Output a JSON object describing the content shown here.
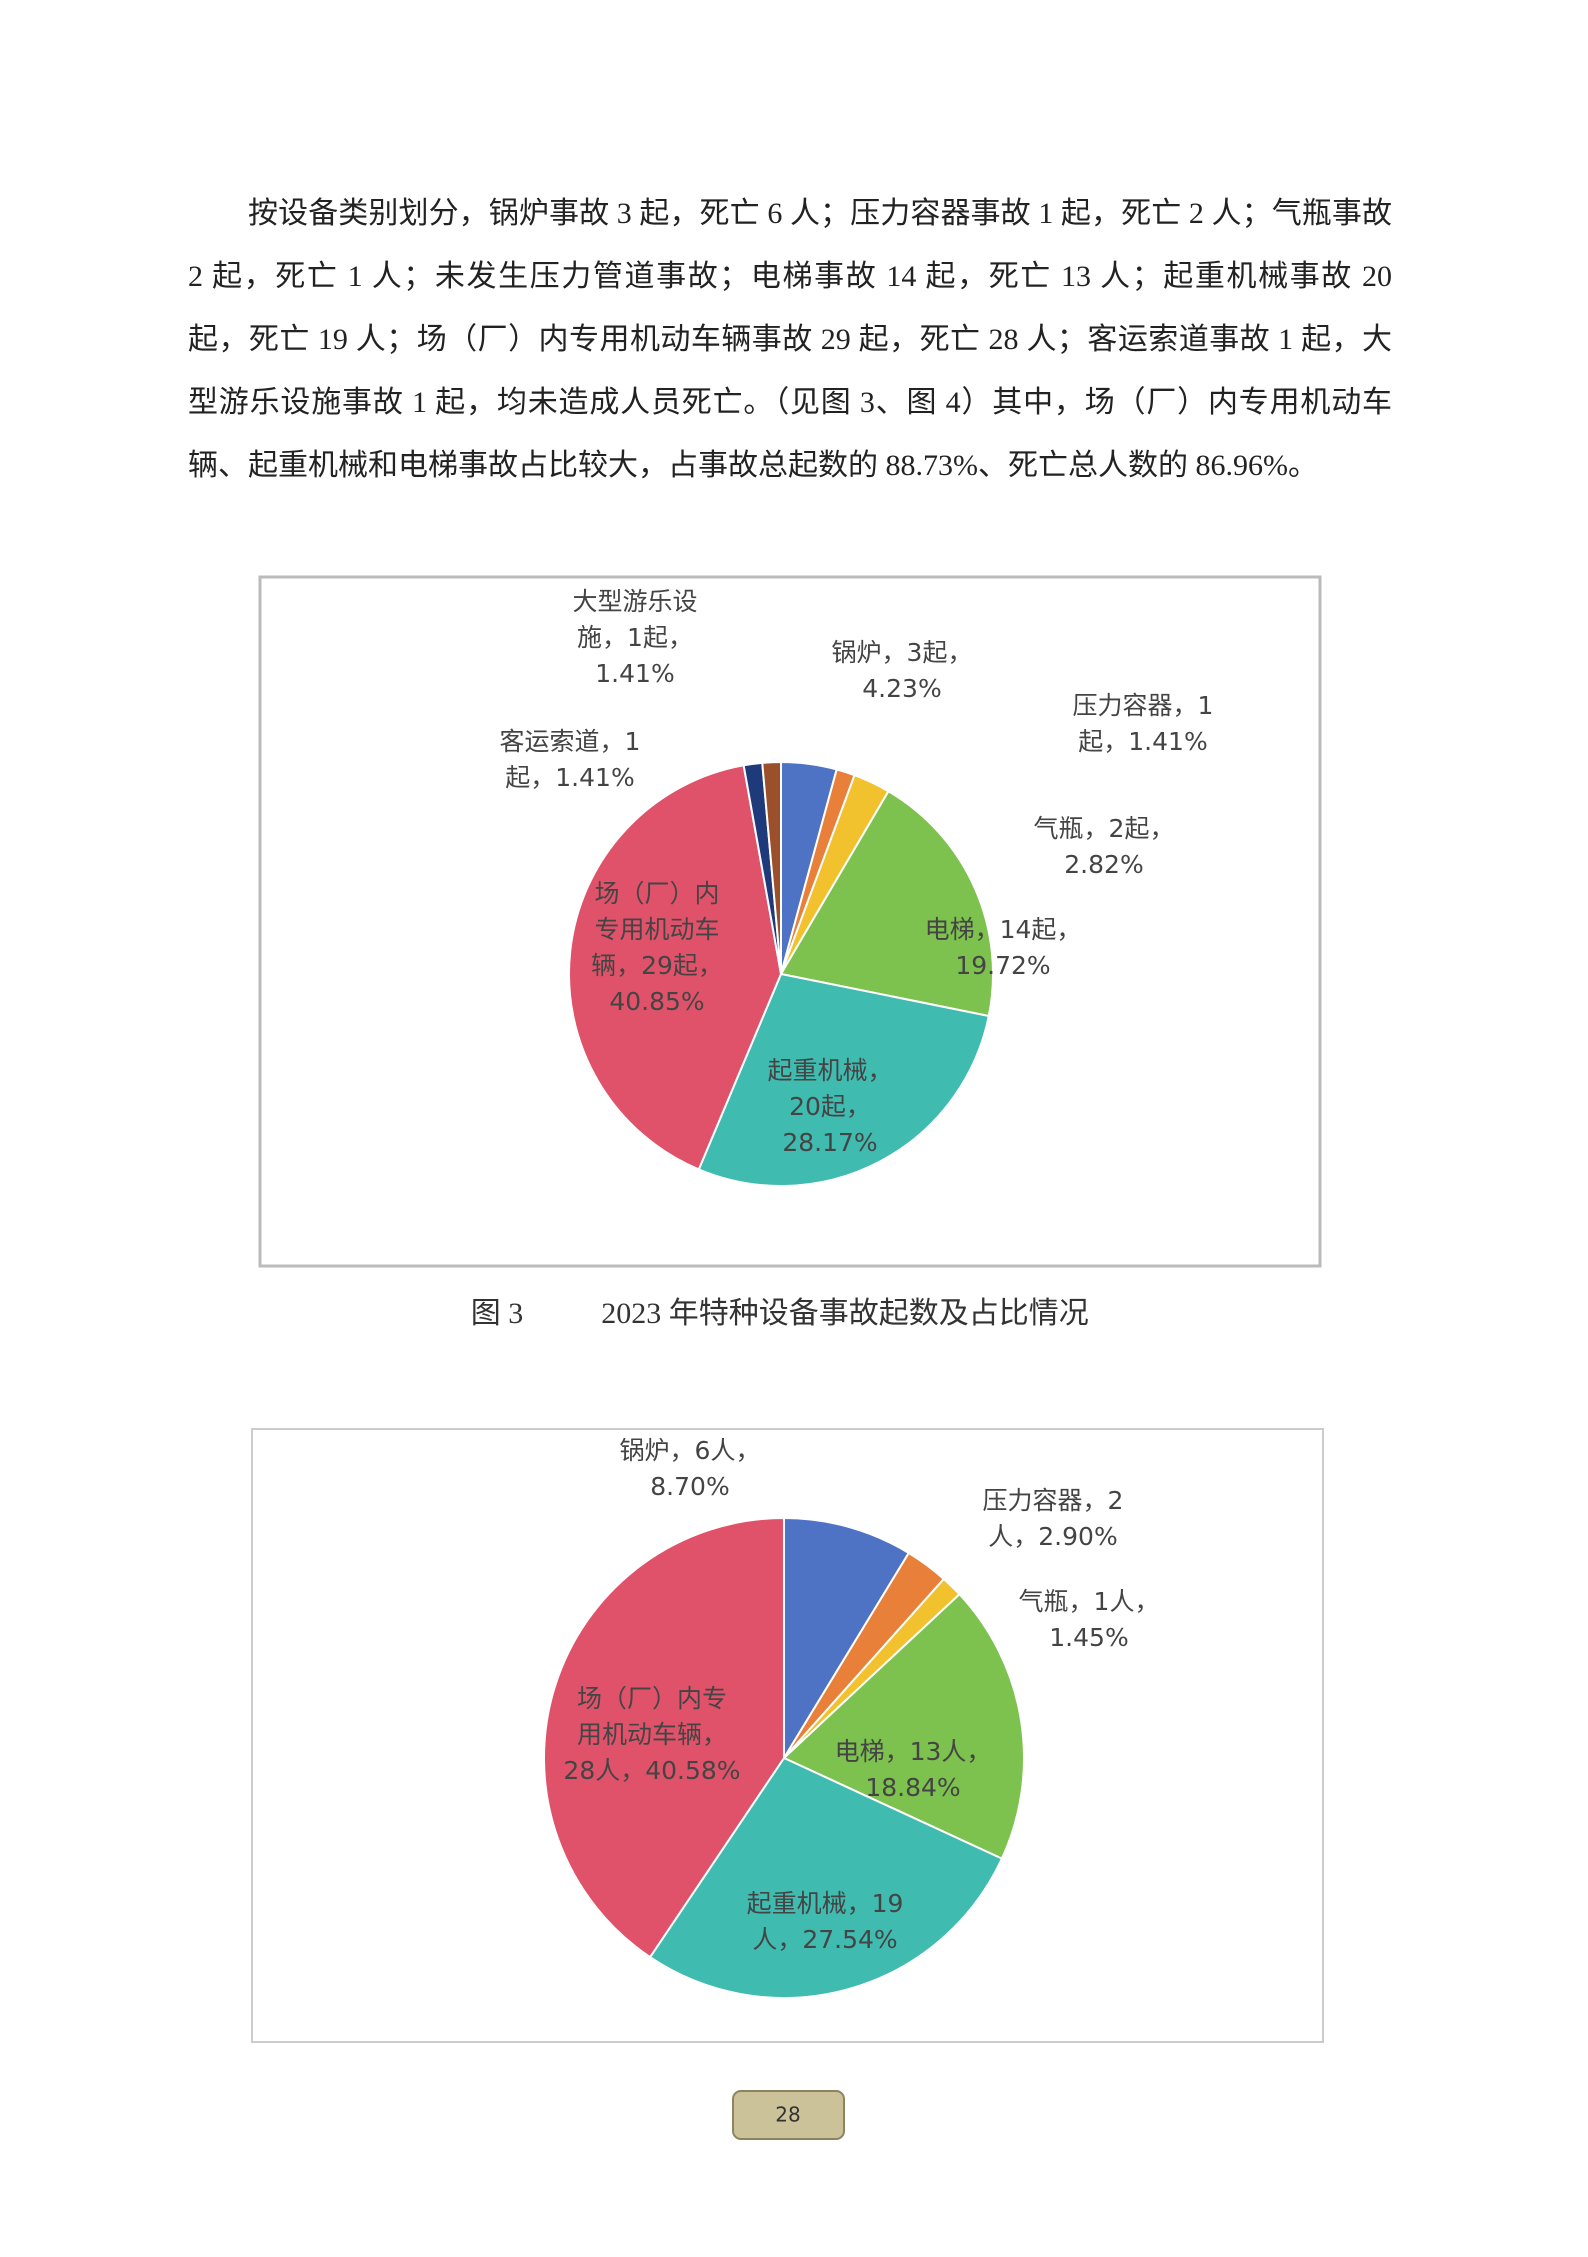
{
  "paragraph": "按设备类别划分，锅炉事故 3 起，死亡 6 人；压力容器事故 1 起，死亡 2 人；气瓶事故 2 起，死亡 1 人；未发生压力管道事故；电梯事故 14 起，死亡 13 人；起重机械事故 20 起，死亡 19 人；场（厂）内专用机动车辆事故 29 起，死亡 28 人；客运索道事故 1 起，大型游乐设施事故 1 起，均未造成人员死亡。（见图 3、图 4）其中，场（厂）内专用机动车辆、起重机械和电梯事故占比较大，占事故总起数的 88.73%、死亡总人数的 86.96%。",
  "chart_data": [
    {
      "type": "pie",
      "values": [
        4.23,
        1.41,
        2.82,
        19.72,
        28.17,
        40.85,
        1.41,
        1.41
      ],
      "value_labels": [
        [
          "锅炉，3起，",
          "4.23%"
        ],
        [
          "压力容器，1",
          "起，1.41%"
        ],
        [
          "气瓶，2起，",
          "2.82%"
        ],
        [
          "电梯，14起，",
          "19.72%"
        ],
        [
          "起重机械，",
          "20起，",
          "28.17%"
        ],
        [
          "场（厂）内",
          "专用机动车",
          "辆，29起，",
          "40.85%"
        ],
        [
          "客运索道，1",
          "起，1.41%"
        ],
        [
          "大型游乐设",
          "施，1起，",
          "1.41%"
        ]
      ],
      "colors": [
        "#4f73c4",
        "#e8803a",
        "#f2c12e",
        "#7dc14f",
        "#3fbbb0",
        "#e0526a",
        "#1f3a7a",
        "#9b4f2a"
      ]
    },
    {
      "type": "pie",
      "values": [
        8.7,
        2.9,
        1.45,
        18.84,
        27.54,
        40.58
      ],
      "value_labels": [
        [
          "锅炉，6人，",
          "8.70%"
        ],
        [
          "压力容器，2",
          "人，2.90%"
        ],
        [
          "气瓶，1人，",
          "1.45%"
        ],
        [
          "电梯，13人，",
          "18.84%"
        ],
        [
          "起重机械，19",
          "人，27.54%"
        ],
        [
          "场（厂）内专",
          "用机动车辆，",
          "28人，40.58%"
        ]
      ],
      "colors": [
        "#4f73c4",
        "#e8803a",
        "#f2c12e",
        "#7dc14f",
        "#3fbbb0",
        "#e0526a"
      ]
    }
  ],
  "caption": {
    "label": "图 3",
    "title": "2023 年特种设备事故起数及占比情况"
  },
  "page_number": 28
}
